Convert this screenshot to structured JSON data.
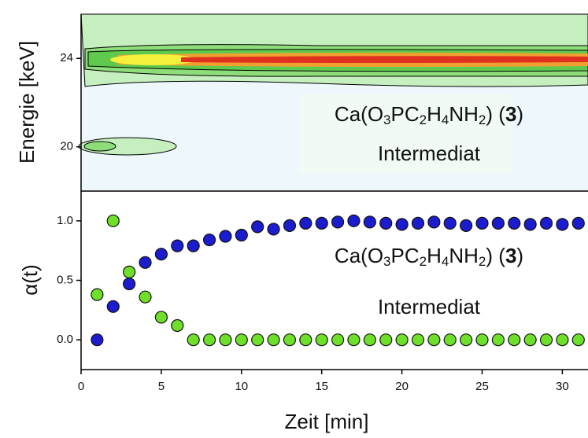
{
  "chart_data": [
    {
      "type": "contour",
      "ylabel": "Energie [keV]",
      "xlim": [
        0,
        31.6
      ],
      "ylim": [
        18,
        26
      ],
      "yticks": [
        20,
        24
      ],
      "annotations": [
        [
          "Ca(O",
          "3",
          "PC",
          "2",
          "H",
          "4",
          "NH",
          "2",
          ") (",
          "3",
          ")"
        ],
        [
          "Intermediat"
        ]
      ]
    },
    {
      "type": "scatter",
      "ylabel": "α(t)",
      "xlabel": "Zeit [min]",
      "xlim": [
        0,
        31.6
      ],
      "ylim": [
        -0.25,
        1.25
      ],
      "xticks": [
        0,
        5,
        10,
        15,
        20,
        25,
        30
      ],
      "yticks": [
        {
          "value": 0,
          "label": "0.0"
        },
        {
          "value": 0.5,
          "label": "0.5"
        },
        {
          "value": 1,
          "label": "1.0"
        }
      ],
      "x": [
        1,
        2,
        3,
        4,
        5,
        6,
        7,
        8,
        9,
        10,
        11,
        12,
        13,
        14,
        15,
        16,
        17,
        18,
        19,
        20,
        21,
        22,
        23,
        24,
        25,
        26,
        27,
        28,
        29,
        30,
        31
      ],
      "series": [
        {
          "color": "#1c1ccf",
          "values": [
            0,
            0.28,
            0.47,
            0.65,
            0.72,
            0.79,
            0.79,
            0.84,
            0.87,
            0.88,
            0.95,
            0.93,
            0.96,
            0.98,
            0.98,
            0.99,
            1.0,
            0.99,
            0.98,
            0.97,
            0.98,
            0.99,
            0.98,
            0.96,
            0.98,
            0.98,
            0.98,
            0.97,
            0.98,
            0.97,
            0.98
          ]
        },
        {
          "color": "#6fe02a",
          "values": [
            0.38,
            1.0,
            0.57,
            0.36,
            0.19,
            0.12,
            0,
            0,
            0,
            0,
            0,
            0,
            0,
            0,
            0,
            0,
            0,
            0,
            0,
            0,
            0,
            0,
            0,
            0,
            0,
            0,
            0,
            0,
            0,
            0,
            0
          ]
        }
      ],
      "annotations": [
        [
          "Ca(O",
          "3",
          "PC",
          "2",
          "H",
          "4",
          "NH",
          "2",
          ") (",
          "3",
          ")"
        ],
        [
          "Intermediat"
        ]
      ]
    }
  ]
}
